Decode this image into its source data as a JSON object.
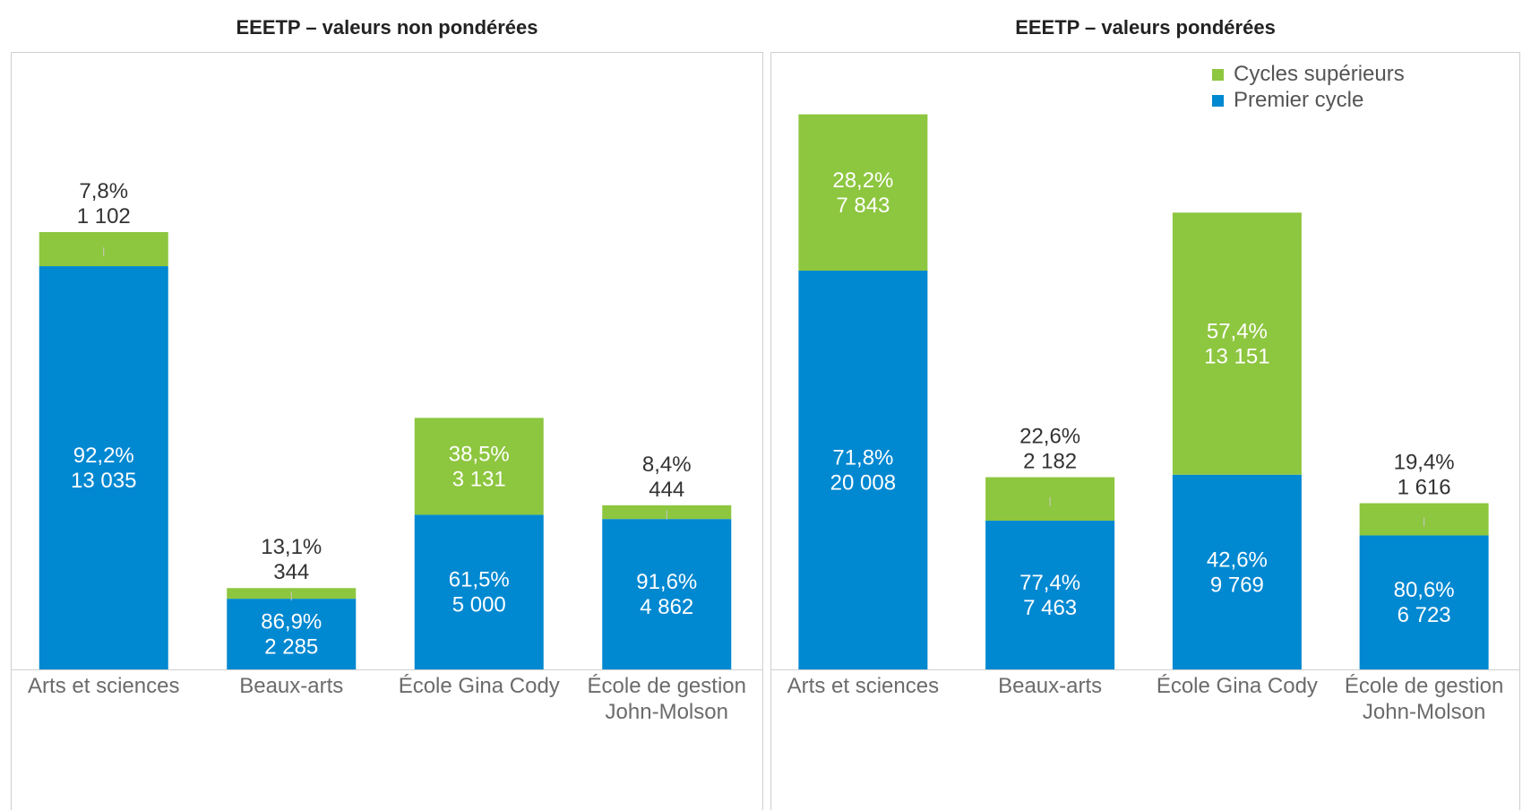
{
  "colors": {
    "upper": "#8dc63f",
    "lower": "#0088d1"
  },
  "legend": [
    {
      "name": "Cycles supérieurs",
      "color": "#8dc63f"
    },
    {
      "name": "Premier cycle",
      "color": "#0088d1"
    }
  ],
  "chart_data": [
    {
      "type": "bar",
      "stacked": true,
      "title": "EEETP – valeurs non pondérées",
      "categories": [
        [
          "Arts et sciences"
        ],
        [
          "Beaux-arts"
        ],
        [
          "École Gina Cody"
        ],
        [
          "École de gestion",
          "John-Molson"
        ]
      ],
      "series": [
        {
          "name": "Premier cycle",
          "values": [
            13035,
            2285,
            5000,
            4862
          ],
          "percent_labels": [
            "92,2%",
            "86,9%",
            "61,5%",
            "91,6%"
          ],
          "value_labels": [
            "13 035",
            "2 285",
            "5 000",
            "4 862"
          ]
        },
        {
          "name": "Cycles supérieurs",
          "values": [
            1102,
            344,
            3131,
            444
          ],
          "percent_labels": [
            "7,8%",
            "13,1%",
            "38,5%",
            "8,4%"
          ],
          "value_labels": [
            "1 102",
            "344",
            "3 131",
            "444"
          ]
        }
      ],
      "ylim": [
        0,
        16000
      ]
    },
    {
      "type": "bar",
      "stacked": true,
      "title": "EEETP – valeurs pondérées",
      "categories": [
        [
          "Arts et sciences"
        ],
        [
          "Beaux-arts"
        ],
        [
          "École Gina Cody"
        ],
        [
          "École de gestion",
          "John-Molson"
        ]
      ],
      "series": [
        {
          "name": "Premier cycle",
          "values": [
            20008,
            7463,
            9769,
            6723
          ],
          "percent_labels": [
            "71,8%",
            "77,4%",
            "42,6%",
            "80,6%"
          ],
          "value_labels": [
            "20 008",
            "7 463",
            "9 769",
            "6 723"
          ]
        },
        {
          "name": "Cycles supérieurs",
          "values": [
            7843,
            2182,
            13151,
            1616
          ],
          "percent_labels": [
            "28,2%",
            "22,6%",
            "57,4%",
            "19,4%"
          ],
          "value_labels": [
            "7 843",
            "2 182",
            "13 151",
            "1 616"
          ]
        }
      ],
      "ylim": [
        0,
        30000
      ],
      "legend_position": "top-right"
    }
  ]
}
